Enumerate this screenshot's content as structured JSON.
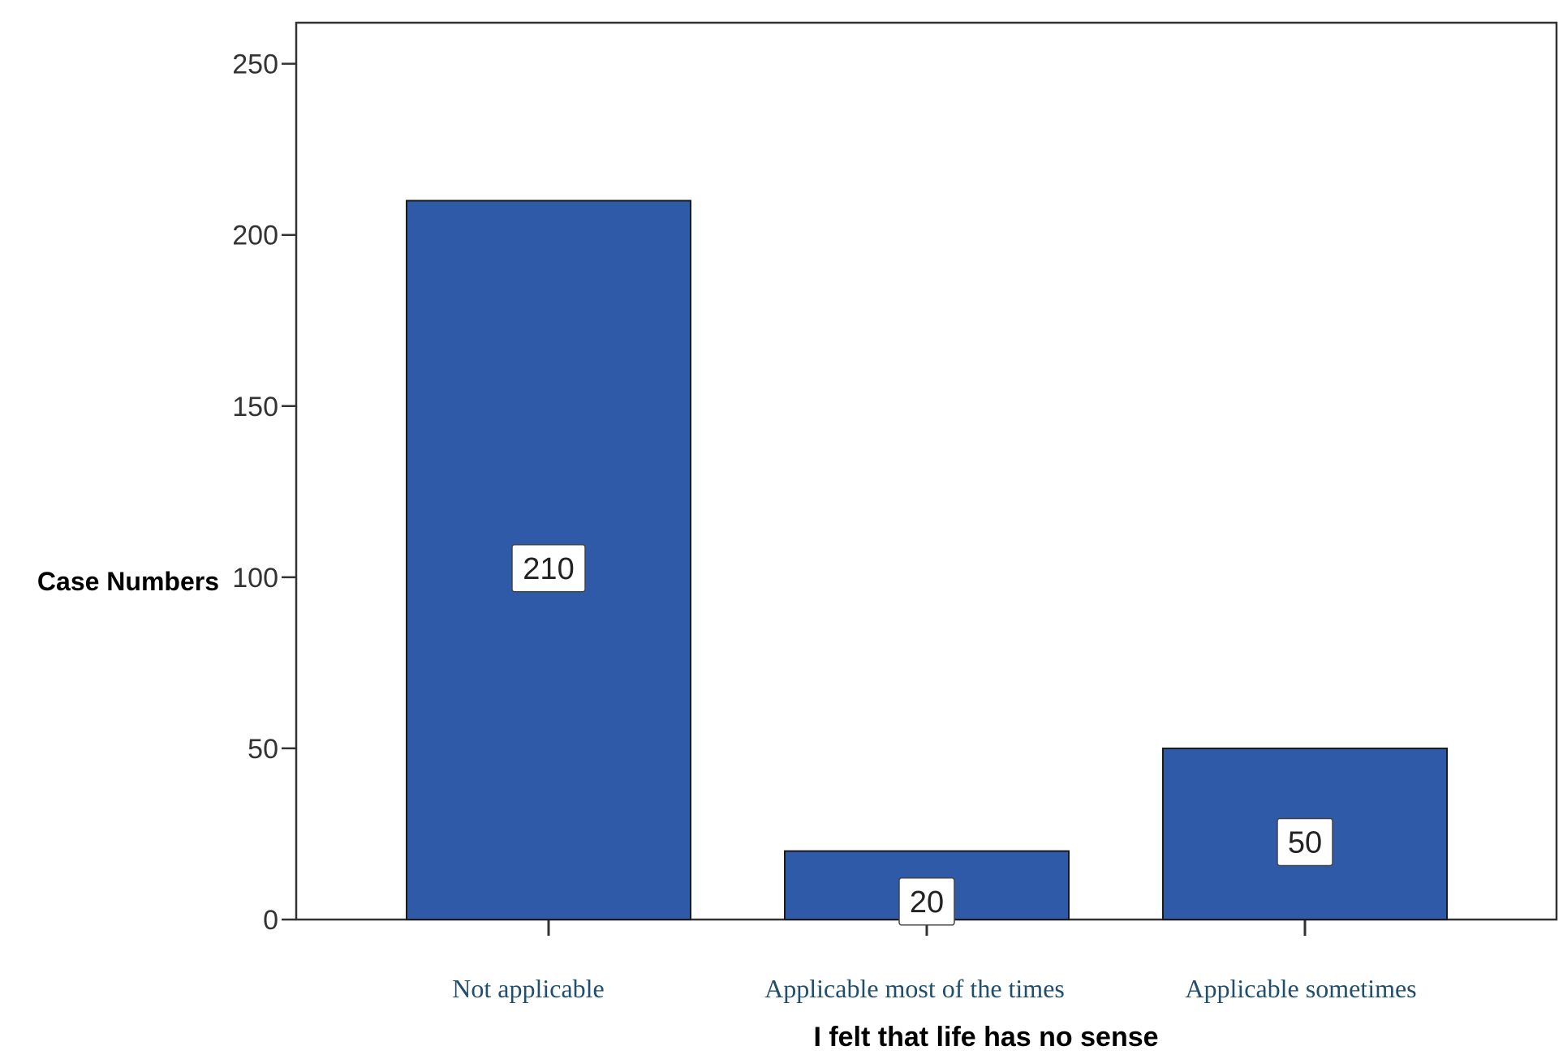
{
  "chart_data": {
    "type": "bar",
    "title": "",
    "xlabel": "I felt that life has no sense",
    "ylabel": "Case Numbers",
    "categories": [
      "Not applicable",
      "Applicable most of the times",
      "Applicable sometimes"
    ],
    "values": [
      210,
      20,
      50
    ],
    "data_labels": [
      "210",
      "20",
      "50"
    ],
    "ylim": [
      0,
      262
    ],
    "yticks": [
      0,
      50,
      100,
      150,
      200,
      250
    ],
    "ytick_labels": [
      "0",
      "50",
      "100",
      "150",
      "200",
      "250"
    ],
    "grid": false,
    "legend": "none",
    "colors": {
      "bar_fill": "#2e5aa8",
      "bar_stroke": "#1a1a1a",
      "axis": "#333333",
      "tick_label": "#333333",
      "category_label": "#1f4e6e",
      "label_box_fill": "#ffffff"
    }
  }
}
